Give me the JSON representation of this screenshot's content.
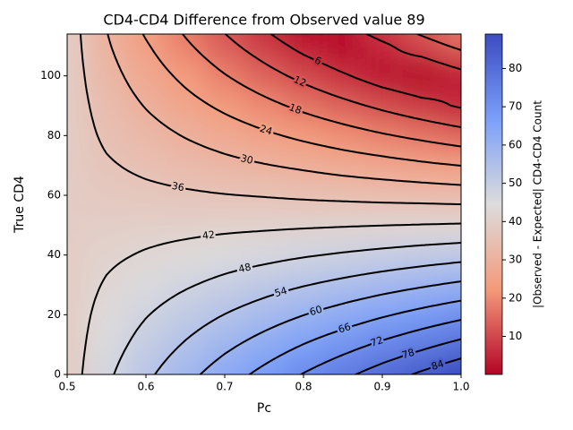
{
  "chart_data": {
    "type": "contour",
    "title": "CD4-CD4 Difference from Observed value 89",
    "xlabel": "Pc",
    "ylabel": "True CD4",
    "colorbar_label": "|Observed - Expected| CD4-CD4 Count",
    "x": [
      0.5,
      0.55,
      0.6,
      0.65,
      0.7,
      0.75,
      0.8,
      0.85,
      0.9,
      0.95,
      1.0
    ],
    "y": [
      0,
      10,
      20,
      30,
      40,
      50,
      60,
      70,
      80,
      90,
      100,
      110,
      114
    ],
    "z": [
      [
        39,
        46.9,
        52.8,
        58.1,
        63.1,
        67.7,
        72.3,
        76.6,
        80.9,
        85.0,
        89
      ],
      [
        39,
        45.4,
        50.2,
        54.5,
        58.6,
        62.4,
        66.1,
        69.6,
        73.1,
        76.4,
        79.7
      ],
      [
        39,
        44,
        47.7,
        51,
        54.1,
        57,
        59.9,
        62.6,
        65.3,
        67.9,
        70.4
      ],
      [
        39,
        42.5,
        45.1,
        47.4,
        49.6,
        51.7,
        53.7,
        55.6,
        57.5,
        59.3,
        61.1
      ],
      [
        39,
        41,
        42.5,
        43.9,
        45.2,
        46.3,
        47.5,
        48.6,
        49.7,
        50.8,
        51.8
      ],
      [
        39,
        39.6,
        40,
        40.3,
        40.7,
        41,
        41.3,
        41.6,
        41.9,
        42.2,
        42.5
      ],
      [
        39,
        38.1,
        37.4,
        36.8,
        36.2,
        35.7,
        35.1,
        34.6,
        34.1,
        33.7,
        33.2
      ],
      [
        39,
        36.6,
        34.8,
        33.2,
        31.7,
        30.3,
        29,
        27.6,
        26.4,
        25.1,
        23.9
      ],
      [
        39,
        35.1,
        32.3,
        29.7,
        27.3,
        25,
        22.8,
        20.7,
        18.6,
        16.6,
        14.6
      ],
      [
        39,
        33.7,
        29.7,
        26.1,
        22.8,
        19.7,
        16.6,
        13.7,
        10.8,
        8,
        5.3
      ],
      [
        39,
        32.2,
        27.1,
        22.6,
        18.3,
        14.3,
        10.4,
        6.7,
        3,
        0.5,
        4
      ],
      [
        39,
        30.7,
        24.6,
        19,
        13.8,
        9,
        4.2,
        0.3,
        4.8,
        9.1,
        13.3
      ],
      [
        39,
        30.2,
        23.5,
        17.6,
        12.1,
        6.9,
        1.8,
        3.1,
        7.9,
        12.5,
        17
      ]
    ],
    "levels": [
      0.05,
      6,
      12,
      18,
      24,
      30,
      36,
      42,
      48,
      54,
      60,
      66,
      72,
      78,
      84
    ],
    "line_color": "#000000",
    "colormap": [
      "#b40426",
      "#f49a7b",
      "#dddcdc",
      "#7b9ff9",
      "#3b4cc0"
    ],
    "clim": [
      0.05,
      89
    ],
    "cticks": [
      10,
      20,
      30,
      40,
      50,
      60,
      70,
      80
    ],
    "xlim": [
      0.5,
      1.0
    ],
    "xticks": [
      0.5,
      0.6,
      0.7,
      0.8,
      0.9,
      {
        "value": 1.0,
        "label": "1.0"
      }
    ],
    "ylim": [
      0,
      114
    ],
    "yticks": [
      0,
      20,
      40,
      60,
      80,
      100
    ]
  }
}
